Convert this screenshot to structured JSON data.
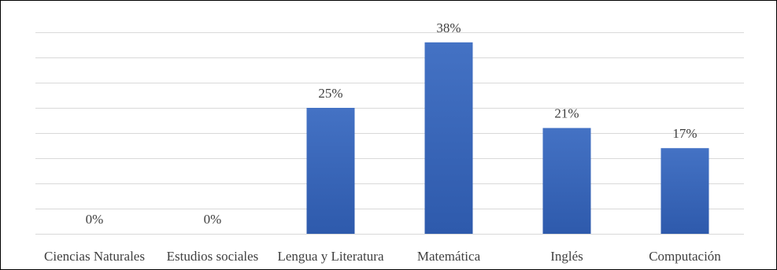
{
  "chart_data": {
    "type": "bar",
    "title": "",
    "xlabel": "",
    "ylabel": "",
    "categories": [
      "Ciencias Naturales",
      "Estudios sociales",
      "Lengua y Literatura",
      "Matemática",
      "Inglés",
      "Computación"
    ],
    "values": [
      0,
      0,
      25,
      38,
      21,
      17
    ],
    "data_labels": [
      "0%",
      "0%",
      "25%",
      "38%",
      "21%",
      "17%"
    ],
    "unit": "%",
    "ylim": [
      0,
      40
    ],
    "ytick_step": 5,
    "grid": true,
    "legend": "none",
    "bar_color": "#4472C4",
    "bar_color_dark": "#2E5AAC",
    "grid_color": "#D9D9D9",
    "text_color": "#404040"
  }
}
